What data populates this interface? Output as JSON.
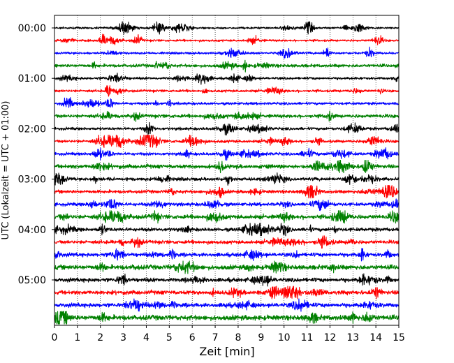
{
  "chart_data": {
    "type": "line",
    "chart_kind": "helicorder seismogram",
    "xlabel": "Zeit  [min]",
    "ylabel": "UTC (Lokalzeit = UTC + 01:00)",
    "xlim": [
      0,
      15
    ],
    "x_ticks": [
      "0",
      "1",
      "2",
      "3",
      "4",
      "5",
      "6",
      "7",
      "8",
      "9",
      "10",
      "11",
      "12",
      "13",
      "14",
      "15"
    ],
    "y_tick_labels": [
      "00:00",
      "01:00",
      "02:00",
      "03:00",
      "04:00",
      "05:00"
    ],
    "grid": "vertical dotted lines at each minute",
    "trace_interval_min": 15,
    "trace_count": 24,
    "trace_color_cycle": [
      "#000000",
      "#ff0000",
      "#0000ff",
      "#008000"
    ],
    "series": [
      {
        "start": "00:00",
        "color": "#000000"
      },
      {
        "start": "00:15",
        "color": "#ff0000"
      },
      {
        "start": "00:30",
        "color": "#0000ff"
      },
      {
        "start": "00:45",
        "color": "#008000"
      },
      {
        "start": "01:00",
        "color": "#000000"
      },
      {
        "start": "01:15",
        "color": "#ff0000"
      },
      {
        "start": "01:30",
        "color": "#0000ff"
      },
      {
        "start": "01:45",
        "color": "#008000"
      },
      {
        "start": "02:00",
        "color": "#000000"
      },
      {
        "start": "02:15",
        "color": "#ff0000"
      },
      {
        "start": "02:30",
        "color": "#0000ff"
      },
      {
        "start": "02:45",
        "color": "#008000"
      },
      {
        "start": "03:00",
        "color": "#000000"
      },
      {
        "start": "03:15",
        "color": "#ff0000"
      },
      {
        "start": "03:30",
        "color": "#0000ff"
      },
      {
        "start": "03:45",
        "color": "#008000"
      },
      {
        "start": "04:00",
        "color": "#000000"
      },
      {
        "start": "04:15",
        "color": "#ff0000"
      },
      {
        "start": "04:30",
        "color": "#0000ff"
      },
      {
        "start": "04:45",
        "color": "#008000"
      },
      {
        "start": "05:00",
        "color": "#000000"
      },
      {
        "start": "05:15",
        "color": "#ff0000"
      },
      {
        "start": "05:30",
        "color": "#0000ff"
      },
      {
        "start": "05:45",
        "color": "#008000"
      }
    ]
  }
}
